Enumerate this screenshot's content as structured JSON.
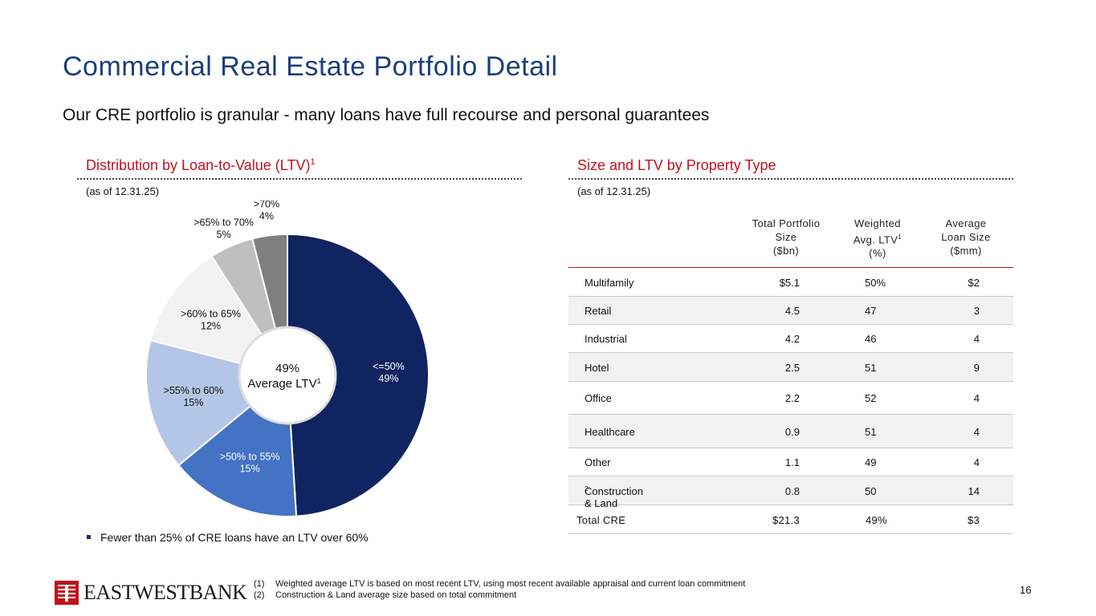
{
  "page": {
    "title": "Commercial Real Estate Portfolio Detail",
    "subtitle": "Our CRE portfolio is granular - many loans have full recourse and personal guarantees",
    "page_number": "16"
  },
  "left": {
    "heading": "Distribution by Loan-to-Value (LTV)",
    "heading_sup": "1",
    "as_of": "(as of 12.31.25)",
    "center_value": "49%",
    "center_label": "Average LTV",
    "center_sup": "1",
    "bullet": "Fewer than 25% of CRE loans have an LTV over 60%"
  },
  "right": {
    "heading": "Size and LTV by Property Type",
    "as_of": "(as of 12.31.25)"
  },
  "chart_data": {
    "type": "pie",
    "donut": true,
    "slices": [
      {
        "label": "<=50%",
        "value": 49,
        "value_label": "49%",
        "color": "#0f2460",
        "text_color": "#ffffff"
      },
      {
        "label": ">50% to 55%",
        "value": 15,
        "value_label": "15%",
        "color": "#4472c4",
        "text_color": "#ffffff"
      },
      {
        "label": ">55% to 60%",
        "value": 15,
        "value_label": "15%",
        "color": "#b4c6e7",
        "text_color": "#111111"
      },
      {
        "label": ">60% to 65%",
        "value": 12,
        "value_label": "12%",
        "color": "#f2f2f2",
        "text_color": "#111111"
      },
      {
        "label": ">65% to 70%",
        "value": 5,
        "value_label": "5%",
        "color": "#bfbfbf",
        "text_color": "#111111"
      },
      {
        "label": ">70%",
        "value": 4,
        "value_label": "4%",
        "color": "#7f7f7f",
        "text_color": "#111111"
      }
    ]
  },
  "table": {
    "headers": {
      "size": [
        "Total Portfolio",
        "Size",
        "($bn)"
      ],
      "ltv": [
        "Weighted",
        "Avg. LTV",
        "(%)"
      ],
      "ltv_sup": "1",
      "avg": [
        "Average",
        "Loan Size",
        "($mm)"
      ]
    },
    "rows": [
      {
        "name": "Multifamily",
        "size": "$5.1",
        "ltv": "50%",
        "avg": "$2"
      },
      {
        "name": "Retail",
        "size": "4.5",
        "ltv": "47",
        "avg": "3"
      },
      {
        "name": "Industrial",
        "size": "4.2",
        "ltv": "46",
        "avg": "4"
      },
      {
        "name": "Hotel",
        "size": "2.5",
        "ltv": "51",
        "avg": "9"
      },
      {
        "name": "Office",
        "size": "2.2",
        "ltv": "52",
        "avg": "4"
      },
      {
        "name": "Healthcare",
        "size": "0.9",
        "ltv": "51",
        "avg": "4"
      },
      {
        "name": "Other",
        "size": "1.1",
        "ltv": "49",
        "avg": "4"
      },
      {
        "name": "Construction & Land",
        "name_sup": "2",
        "size": "0.8",
        "ltv": "50",
        "avg": "14"
      }
    ],
    "total": {
      "name": "Total CRE",
      "size": "$21.3",
      "ltv": "49%",
      "avg": "$3"
    }
  },
  "footnotes": [
    {
      "num": "(1)",
      "text": "Weighted average LTV is based on most recent LTV, using most recent available appraisal and current loan commitment"
    },
    {
      "num": "(2)",
      "text": "Construction & Land average size based on total commitment"
    }
  ],
  "logo": {
    "text": "EASTWESTBANK",
    "icon": "east-west-bank-logo-icon",
    "color": "#c0121d"
  }
}
